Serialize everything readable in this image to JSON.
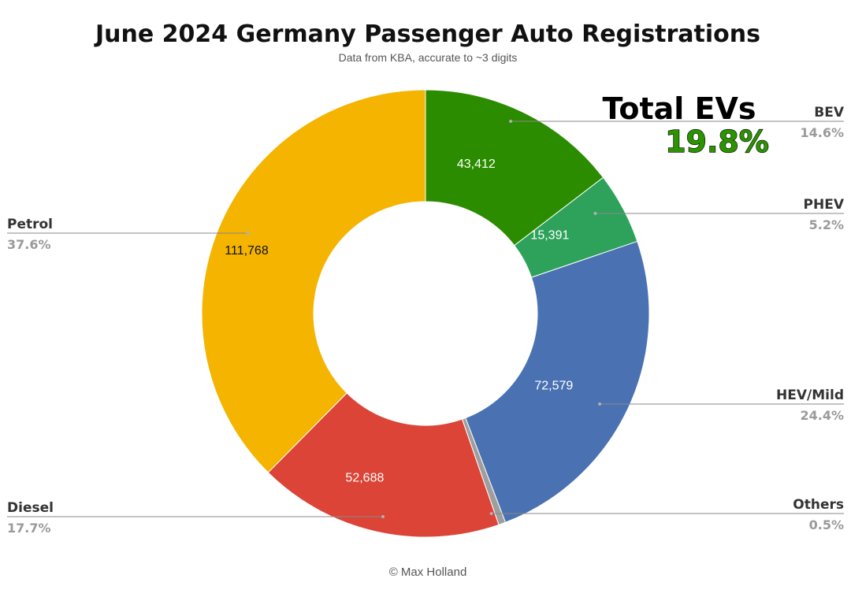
{
  "chart_data": {
    "type": "pie",
    "variant": "donut",
    "title": "June 2024 Germany Passenger Auto Registrations",
    "subtitle": "Data from KBA, accurate to ~3 digits",
    "credit": "© Max Holland",
    "slices": [
      {
        "name": "BEV",
        "value": 43412,
        "value_label": "43,412",
        "percent_label": "14.6%",
        "color": "#2b8c00",
        "label_color": "#ffffff",
        "side": "right"
      },
      {
        "name": "PHEV",
        "value": 15391,
        "value_label": "15,391",
        "percent_label": "5.2%",
        "color": "#2ea25a",
        "label_color": "#ffffff",
        "side": "right"
      },
      {
        "name": "HEV/Mild",
        "value": 72579,
        "value_label": "72,579",
        "percent_label": "24.4%",
        "color": "#4a72b2",
        "label_color": "#ffffff",
        "side": "right"
      },
      {
        "name": "Others",
        "value": 1500,
        "value_label": "",
        "percent_label": "0.5%",
        "color": "#9e9e9e",
        "label_color": "#ffffff",
        "side": "right"
      },
      {
        "name": "Diesel",
        "value": 52688,
        "value_label": "52,688",
        "percent_label": "17.7%",
        "color": "#db4437",
        "label_color": "#ffffff",
        "side": "left"
      },
      {
        "name": "Petrol",
        "value": 111768,
        "value_label": "111,768",
        "percent_label": "37.6%",
        "color": "#f4b400",
        "label_color": "#111111",
        "side": "left"
      }
    ],
    "annotation": {
      "title": "Total EVs",
      "value": "19.8%",
      "color": "#2b9400"
    }
  }
}
